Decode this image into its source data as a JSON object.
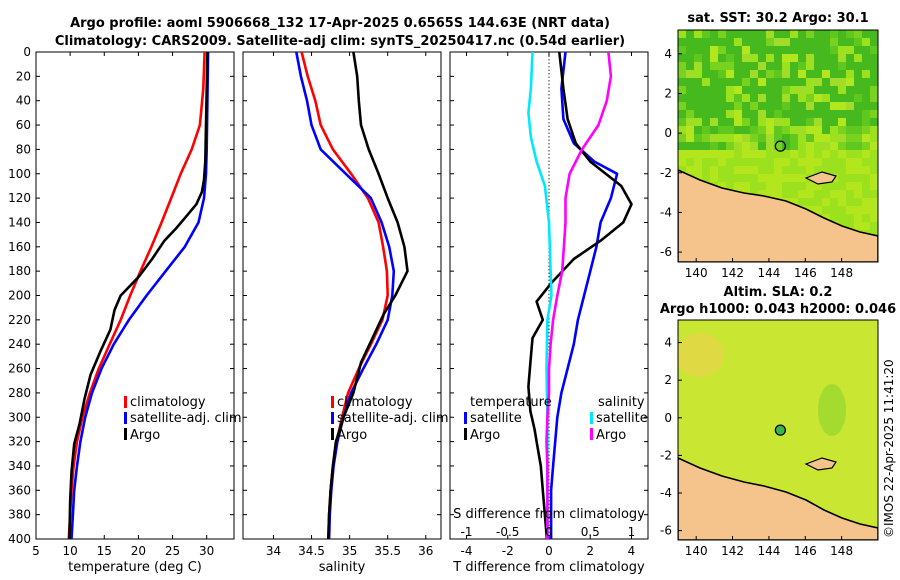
{
  "title": {
    "line1": "Argo profile: aoml 5906668_132 17-Apr-2025 0.6565S 144.63E (NRT data)",
    "line2": "Climatology: CARS2009. Satellite-adj clim: synTS_20250417.nc (0.54d earlier)"
  },
  "colors": {
    "climatology": "#ff0000",
    "satellite": "#0000ff",
    "argo": "#000000",
    "sat_diff_T": "#00e8ff",
    "argo_diff_S": "#ff00ff"
  },
  "chart_data": [
    {
      "type": "line",
      "id": "temperature",
      "xlabel": "temperature (deg C)",
      "ylabel": "",
      "xlim": [
        5,
        34
      ],
      "ylim": [
        0,
        400
      ],
      "y_reversed": true,
      "xticks": [
        "5",
        "10",
        "15",
        "20",
        "25",
        "30"
      ],
      "yticks": [
        "0",
        "20",
        "40",
        "60",
        "80",
        "100",
        "120",
        "140",
        "160",
        "180",
        "200",
        "220",
        "240",
        "260",
        "280",
        "300",
        "320",
        "340",
        "360",
        "380",
        "400"
      ],
      "legend": [
        "climatology",
        "satellite-adj. clim",
        "Argo"
      ],
      "series": [
        {
          "name": "climatology",
          "color": "#ff0000",
          "points": [
            [
              29.7,
              0
            ],
            [
              29.5,
              30
            ],
            [
              29.0,
              60
            ],
            [
              27.8,
              80
            ],
            [
              26.2,
              100
            ],
            [
              24.8,
              120
            ],
            [
              23.4,
              140
            ],
            [
              21.9,
              160
            ],
            [
              20.3,
              180
            ],
            [
              18.8,
              200
            ],
            [
              17.4,
              220
            ],
            [
              15.8,
              240
            ],
            [
              14.2,
              260
            ],
            [
              12.9,
              280
            ],
            [
              11.8,
              300
            ],
            [
              11.0,
              320
            ],
            [
              10.5,
              340
            ],
            [
              10.2,
              360
            ],
            [
              10.0,
              380
            ],
            [
              9.8,
              400
            ]
          ]
        },
        {
          "name": "satellite-adj. clim",
          "color": "#0000ff",
          "points": [
            [
              30.2,
              0
            ],
            [
              30.1,
              40
            ],
            [
              30.0,
              80
            ],
            [
              29.9,
              100
            ],
            [
              29.6,
              120
            ],
            [
              28.8,
              140
            ],
            [
              26.8,
              160
            ],
            [
              24.0,
              180
            ],
            [
              21.2,
              200
            ],
            [
              18.6,
              220
            ],
            [
              16.4,
              240
            ],
            [
              14.6,
              260
            ],
            [
              13.2,
              280
            ],
            [
              12.2,
              300
            ],
            [
              11.5,
              320
            ],
            [
              11.0,
              340
            ],
            [
              10.6,
              360
            ],
            [
              10.4,
              380
            ],
            [
              10.2,
              400
            ]
          ]
        },
        {
          "name": "Argo",
          "color": "#000000",
          "points": [
            [
              30.1,
              0
            ],
            [
              30.0,
              30
            ],
            [
              29.9,
              60
            ],
            [
              29.8,
              90
            ],
            [
              29.6,
              105
            ],
            [
              29.3,
              115
            ],
            [
              28.5,
              125
            ],
            [
              27.0,
              135
            ],
            [
              25.5,
              145
            ],
            [
              23.8,
              155
            ],
            [
              22.0,
              170
            ],
            [
              20.0,
              185
            ],
            [
              17.4,
              200
            ],
            [
              16.5,
              212
            ],
            [
              15.9,
              228
            ],
            [
              14.5,
              245
            ],
            [
              13.0,
              265
            ],
            [
              12.1,
              285
            ],
            [
              11.4,
              305
            ],
            [
              10.6,
              322
            ],
            [
              10.2,
              345
            ],
            [
              10.0,
              370
            ],
            [
              9.9,
              400
            ]
          ]
        }
      ]
    },
    {
      "type": "line",
      "id": "salinity",
      "xlabel": "salinity",
      "xlim": [
        33.6,
        36.2
      ],
      "ylim": [
        0,
        400
      ],
      "y_reversed": true,
      "xticks": [
        "34",
        "34.5",
        "35",
        "35.5",
        "36"
      ],
      "legend": [
        "climatology",
        "satellite-adj. clim",
        "Argo"
      ],
      "series": [
        {
          "name": "climatology",
          "color": "#ff0000",
          "points": [
            [
              34.37,
              0
            ],
            [
              34.45,
              20
            ],
            [
              34.55,
              40
            ],
            [
              34.62,
              60
            ],
            [
              34.78,
              80
            ],
            [
              35.02,
              100
            ],
            [
              35.24,
              120
            ],
            [
              35.38,
              140
            ],
            [
              35.44,
              160
            ],
            [
              35.49,
              180
            ],
            [
              35.5,
              200
            ],
            [
              35.43,
              220
            ],
            [
              35.28,
              240
            ],
            [
              35.12,
              260
            ],
            [
              34.98,
              280
            ],
            [
              34.9,
              300
            ],
            [
              34.83,
              320
            ],
            [
              34.78,
              340
            ],
            [
              34.75,
              360
            ],
            [
              34.73,
              380
            ],
            [
              34.72,
              400
            ]
          ]
        },
        {
          "name": "satellite-adj. clim",
          "color": "#0000ff",
          "points": [
            [
              34.3,
              0
            ],
            [
              34.36,
              20
            ],
            [
              34.44,
              40
            ],
            [
              34.5,
              60
            ],
            [
              34.62,
              80
            ],
            [
              34.95,
              100
            ],
            [
              35.28,
              120
            ],
            [
              35.42,
              140
            ],
            [
              35.52,
              160
            ],
            [
              35.58,
              180
            ],
            [
              35.56,
              200
            ],
            [
              35.5,
              220
            ],
            [
              35.35,
              240
            ],
            [
              35.18,
              260
            ],
            [
              35.02,
              280
            ],
            [
              34.92,
              300
            ],
            [
              34.84,
              320
            ],
            [
              34.79,
              340
            ],
            [
              34.76,
              360
            ],
            [
              34.74,
              380
            ],
            [
              34.73,
              400
            ]
          ]
        },
        {
          "name": "Argo",
          "color": "#000000",
          "points": [
            [
              35.05,
              0
            ],
            [
              35.1,
              20
            ],
            [
              35.12,
              40
            ],
            [
              35.15,
              60
            ],
            [
              35.25,
              80
            ],
            [
              35.38,
              100
            ],
            [
              35.5,
              120
            ],
            [
              35.63,
              140
            ],
            [
              35.72,
              160
            ],
            [
              35.76,
              180
            ],
            [
              35.6,
              200
            ],
            [
              35.45,
              215
            ],
            [
              35.3,
              235
            ],
            [
              35.15,
              255
            ],
            [
              35.05,
              280
            ],
            [
              34.92,
              300
            ],
            [
              34.82,
              320
            ],
            [
              34.78,
              340
            ],
            [
              34.75,
              360
            ],
            [
              34.73,
              380
            ],
            [
              34.72,
              400
            ]
          ]
        }
      ]
    },
    {
      "type": "line",
      "id": "difference",
      "xlabel": "T difference from climatology",
      "xlabel_top": "S difference from climatology",
      "xlim": [
        -4.8,
        4.8
      ],
      "ylim": [
        0,
        400
      ],
      "y_reversed": true,
      "xticks": [
        "-4",
        "-2",
        "0",
        "2",
        "4"
      ],
      "xticks_top": [
        "-1",
        "-0.5",
        "0",
        "0.5",
        "1"
      ],
      "legend_titles": [
        "temperature",
        "salinity"
      ],
      "legend": [
        "satellite",
        "Argo",
        "satellite",
        "Argo"
      ],
      "series": [
        {
          "name": "T satellite",
          "color": "#0000ff",
          "points": [
            [
              0.8,
              0
            ],
            [
              0.6,
              30
            ],
            [
              0.7,
              55
            ],
            [
              1.2,
              75
            ],
            [
              2.2,
              90
            ],
            [
              3.3,
              100
            ],
            [
              3.0,
              120
            ],
            [
              2.5,
              140
            ],
            [
              2.3,
              160
            ],
            [
              2.0,
              180
            ],
            [
              1.7,
              200
            ],
            [
              1.4,
              220
            ],
            [
              1.2,
              240
            ],
            [
              0.9,
              260
            ],
            [
              0.6,
              280
            ],
            [
              0.4,
              300
            ],
            [
              0.3,
              320
            ],
            [
              0.2,
              340
            ],
            [
              0.1,
              360
            ],
            [
              0.1,
              380
            ],
            [
              0.1,
              400
            ]
          ]
        },
        {
          "name": "T Argo",
          "color": "#000000",
          "points": [
            [
              0.5,
              0
            ],
            [
              0.7,
              30
            ],
            [
              0.9,
              55
            ],
            [
              1.3,
              75
            ],
            [
              2.0,
              90
            ],
            [
              3.5,
              110
            ],
            [
              4.0,
              125
            ],
            [
              3.6,
              140
            ],
            [
              2.5,
              155
            ],
            [
              1.2,
              170
            ],
            [
              0.1,
              190
            ],
            [
              -0.6,
              205
            ],
            [
              -0.3,
              220
            ],
            [
              -0.8,
              235
            ],
            [
              -0.9,
              255
            ],
            [
              -1.0,
              275
            ],
            [
              -0.9,
              295
            ],
            [
              -0.7,
              310
            ],
            [
              -0.6,
              320
            ],
            [
              -0.4,
              340
            ],
            [
              -0.3,
              360
            ],
            [
              -0.2,
              380
            ],
            [
              -0.1,
              400
            ]
          ]
        },
        {
          "name": "S satellite",
          "color": "#00e8ff",
          "points": [
            [
              -0.2,
              0
            ],
            [
              -0.22,
              30
            ],
            [
              -0.25,
              50
            ],
            [
              -0.22,
              70
            ],
            [
              -0.15,
              90
            ],
            [
              -0.05,
              110
            ],
            [
              0.0,
              140
            ],
            [
              0.02,
              180
            ],
            [
              0.03,
              200
            ],
            [
              -0.02,
              220
            ],
            [
              -0.03,
              260
            ],
            [
              -0.02,
              300
            ],
            [
              -0.02,
              340
            ],
            [
              -0.02,
              380
            ],
            [
              -0.02,
              400
            ]
          ]
        },
        {
          "name": "S Argo",
          "color": "#ff00ff",
          "points": [
            [
              0.72,
              0
            ],
            [
              0.75,
              20
            ],
            [
              0.7,
              40
            ],
            [
              0.6,
              60
            ],
            [
              0.4,
              80
            ],
            [
              0.25,
              100
            ],
            [
              0.2,
              120
            ],
            [
              0.2,
              140
            ],
            [
              0.18,
              160
            ],
            [
              0.16,
              180
            ],
            [
              0.1,
              200
            ],
            [
              0.05,
              220
            ],
            [
              0.02,
              240
            ],
            [
              0.0,
              260
            ],
            [
              0.0,
              280
            ],
            [
              -0.02,
              300
            ],
            [
              -0.03,
              320
            ],
            [
              -0.02,
              340
            ],
            [
              -0.02,
              360
            ],
            [
              -0.02,
              380
            ],
            [
              -0.02,
              400
            ]
          ]
        }
      ]
    },
    {
      "type": "heatmap",
      "id": "sst_map",
      "title": "sat. SST: 30.2 Argo: 30.1",
      "xlim": [
        139,
        150
      ],
      "ylim": [
        -6.5,
        5.2
      ],
      "xticks": [
        "140",
        "142",
        "144",
        "146",
        "148"
      ],
      "yticks": [
        "4",
        "2",
        "0",
        "-2",
        "-4",
        "-6"
      ],
      "argo_position": [
        144.63,
        -0.6565
      ]
    },
    {
      "type": "heatmap",
      "id": "sla_map",
      "title": "Altim. SLA: 0.2",
      "subtitle": "Argo h1000: 0.043 h2000: 0.046",
      "xlim": [
        139,
        150
      ],
      "ylim": [
        -6.5,
        5.2
      ],
      "xticks": [
        "140",
        "142",
        "144",
        "146",
        "148"
      ],
      "yticks": [
        "4",
        "2",
        "0",
        "-2",
        "-4",
        "-6"
      ],
      "argo_position": [
        144.63,
        -0.6565
      ]
    }
  ],
  "footer": {
    "credit": "©IMOS 22-Apr-2025 11:41:20"
  }
}
